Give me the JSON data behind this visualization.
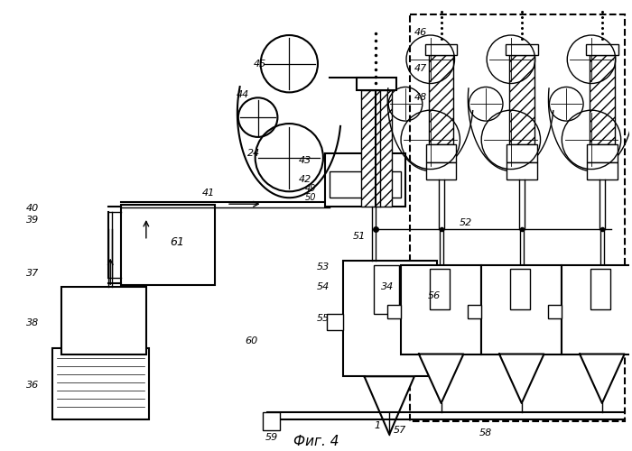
{
  "title": "Фиг. 4",
  "bg_color": "#ffffff"
}
